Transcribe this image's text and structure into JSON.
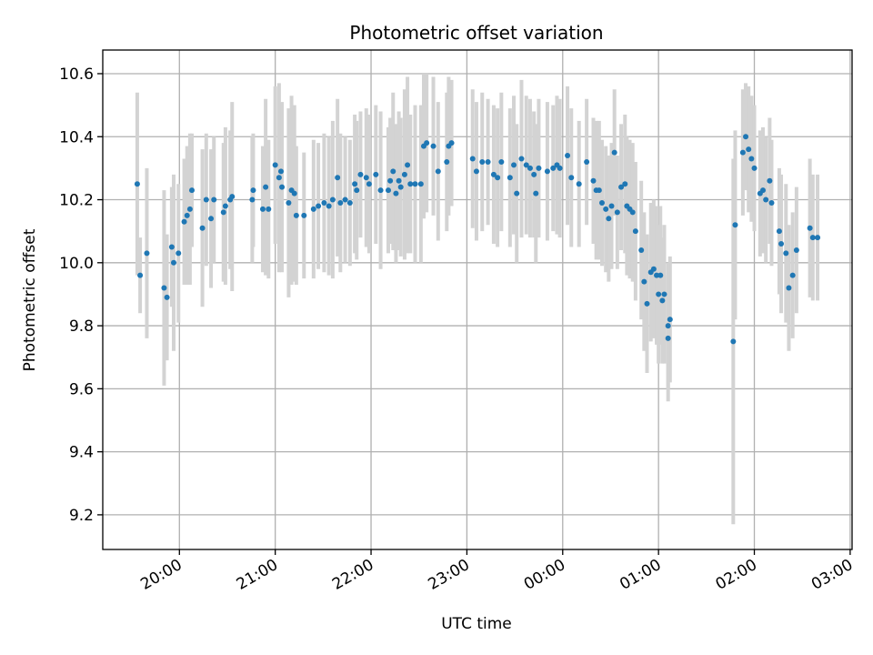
{
  "chart_data": {
    "type": "scatter",
    "title": "Photometric offset variation",
    "xlabel": "UTC time",
    "ylabel": "Photometric offset",
    "x_unit": "UTC time (hours; values past 24 are after 00:00 of the next day)",
    "xlim": [
      19.2,
      27.02
    ],
    "ylim": [
      9.09,
      10.675
    ],
    "x_ticks": [
      {
        "value": 20,
        "label": "20:00"
      },
      {
        "value": 21,
        "label": "21:00"
      },
      {
        "value": 22,
        "label": "22:00"
      },
      {
        "value": 23,
        "label": "23:00"
      },
      {
        "value": 24,
        "label": "00:00"
      },
      {
        "value": 25,
        "label": "01:00"
      },
      {
        "value": 26,
        "label": "02:00"
      },
      {
        "value": 27,
        "label": "03:00"
      }
    ],
    "y_ticks": [
      {
        "value": 9.2,
        "label": "9.2"
      },
      {
        "value": 9.4,
        "label": "9.4"
      },
      {
        "value": 9.6,
        "label": "9.6"
      },
      {
        "value": 9.8,
        "label": "9.8"
      },
      {
        "value": 10.0,
        "label": "10.0"
      },
      {
        "value": 10.2,
        "label": "10.2"
      },
      {
        "value": 10.4,
        "label": "10.4"
      },
      {
        "value": 10.6,
        "label": "10.6"
      }
    ],
    "grid": true,
    "point_color": "#1f77b4",
    "errorbar_color": "#d3d3d3",
    "series": [
      {
        "points": [
          [
            19.56,
            10.25,
            0.29
          ],
          [
            19.59,
            9.96,
            0.12
          ],
          [
            19.66,
            10.03,
            0.27
          ],
          [
            19.84,
            9.92,
            0.31
          ],
          [
            19.87,
            9.89,
            0.2
          ],
          [
            19.92,
            10.05,
            0.19
          ],
          [
            19.94,
            10.0,
            0.28
          ],
          [
            19.99,
            10.03,
            0.22
          ],
          [
            20.05,
            10.13,
            0.2
          ],
          [
            20.08,
            10.15,
            0.22
          ],
          [
            20.11,
            10.17,
            0.24
          ],
          [
            20.13,
            10.23,
            0.18
          ],
          [
            20.24,
            10.11,
            0.25
          ],
          [
            20.28,
            10.2,
            0.21
          ],
          [
            20.33,
            10.14,
            0.22
          ],
          [
            20.36,
            10.2,
            0.2
          ],
          [
            20.46,
            10.16,
            0.22
          ],
          [
            20.48,
            10.18,
            0.25
          ],
          [
            20.53,
            10.2,
            0.22
          ],
          [
            20.55,
            10.21,
            0.3
          ],
          [
            20.76,
            10.2,
            0.2
          ],
          [
            20.77,
            10.23,
            0.18
          ],
          [
            20.87,
            10.17,
            0.2
          ],
          [
            20.9,
            10.24,
            0.28
          ],
          [
            20.93,
            10.17,
            0.22
          ],
          [
            21.0,
            10.31,
            0.25
          ],
          [
            21.04,
            10.27,
            0.3
          ],
          [
            21.06,
            10.29,
            0.2
          ],
          [
            21.07,
            10.24,
            0.27
          ],
          [
            21.14,
            10.19,
            0.3
          ],
          [
            21.17,
            10.23,
            0.3
          ],
          [
            21.2,
            10.22,
            0.28
          ],
          [
            21.22,
            10.15,
            0.22
          ],
          [
            21.3,
            10.15,
            0.2
          ],
          [
            21.4,
            10.17,
            0.22
          ],
          [
            21.45,
            10.18,
            0.2
          ],
          [
            21.51,
            10.19,
            0.22
          ],
          [
            21.56,
            10.18,
            0.22
          ],
          [
            21.6,
            10.2,
            0.25
          ],
          [
            21.65,
            10.27,
            0.25
          ],
          [
            21.68,
            10.19,
            0.22
          ],
          [
            21.73,
            10.2,
            0.2
          ],
          [
            21.78,
            10.19,
            0.2
          ],
          [
            21.83,
            10.25,
            0.22
          ],
          [
            21.85,
            10.23,
            0.22
          ],
          [
            21.89,
            10.28,
            0.2
          ],
          [
            21.95,
            10.27,
            0.22
          ],
          [
            21.98,
            10.25,
            0.22
          ],
          [
            22.05,
            10.28,
            0.22
          ],
          [
            22.1,
            10.23,
            0.25
          ],
          [
            22.18,
            10.23,
            0.2
          ],
          [
            22.2,
            10.26,
            0.2
          ],
          [
            22.23,
            10.29,
            0.25
          ],
          [
            22.26,
            10.22,
            0.22
          ],
          [
            22.29,
            10.26,
            0.22
          ],
          [
            22.31,
            10.24,
            0.22
          ],
          [
            22.35,
            10.28,
            0.27
          ],
          [
            22.38,
            10.31,
            0.28
          ],
          [
            22.41,
            10.25,
            0.22
          ],
          [
            22.46,
            10.25,
            0.25
          ],
          [
            22.52,
            10.25,
            0.25
          ],
          [
            22.55,
            10.37,
            0.23
          ],
          [
            22.58,
            10.38,
            0.22
          ],
          [
            22.65,
            10.37,
            0.22
          ],
          [
            22.7,
            10.29,
            0.22
          ],
          [
            22.79,
            10.32,
            0.22
          ],
          [
            22.81,
            10.37,
            0.22
          ],
          [
            22.84,
            10.38,
            0.2
          ],
          [
            23.06,
            10.33,
            0.22
          ],
          [
            23.1,
            10.29,
            0.22
          ],
          [
            23.16,
            10.32,
            0.22
          ],
          [
            23.22,
            10.32,
            0.2
          ],
          [
            23.28,
            10.28,
            0.22
          ],
          [
            23.32,
            10.27,
            0.22
          ],
          [
            23.36,
            10.32,
            0.22
          ],
          [
            23.45,
            10.27,
            0.22
          ],
          [
            23.49,
            10.31,
            0.22
          ],
          [
            23.52,
            10.22,
            0.22
          ],
          [
            23.57,
            10.33,
            0.25
          ],
          [
            23.62,
            10.31,
            0.22
          ],
          [
            23.66,
            10.3,
            0.22
          ],
          [
            23.7,
            10.28,
            0.2
          ],
          [
            23.72,
            10.22,
            0.22
          ],
          [
            23.75,
            10.3,
            0.22
          ],
          [
            23.84,
            10.29,
            0.22
          ],
          [
            23.9,
            10.3,
            0.2
          ],
          [
            23.94,
            10.31,
            0.22
          ],
          [
            23.97,
            10.3,
            0.22
          ],
          [
            24.05,
            10.34,
            0.22
          ],
          [
            24.09,
            10.27,
            0.22
          ],
          [
            24.17,
            10.25,
            0.2
          ],
          [
            24.25,
            10.32,
            0.2
          ],
          [
            24.32,
            10.26,
            0.2
          ],
          [
            24.35,
            10.23,
            0.22
          ],
          [
            24.38,
            10.23,
            0.22
          ],
          [
            24.41,
            10.19,
            0.2
          ],
          [
            24.45,
            10.17,
            0.2
          ],
          [
            24.48,
            10.14,
            0.2
          ],
          [
            24.51,
            10.18,
            0.2
          ],
          [
            24.54,
            10.35,
            0.2
          ],
          [
            24.57,
            10.16,
            0.18
          ],
          [
            24.61,
            10.24,
            0.2
          ],
          [
            24.65,
            10.25,
            0.22
          ],
          [
            24.67,
            10.18,
            0.22
          ],
          [
            24.7,
            10.17,
            0.22
          ],
          [
            24.73,
            10.16,
            0.22
          ],
          [
            24.76,
            10.1,
            0.22
          ],
          [
            24.82,
            10.04,
            0.22
          ],
          [
            24.85,
            9.94,
            0.22
          ],
          [
            24.88,
            9.87,
            0.22
          ],
          [
            24.92,
            9.97,
            0.22
          ],
          [
            24.95,
            9.98,
            0.22
          ],
          [
            24.98,
            9.96,
            0.22
          ],
          [
            25.0,
            9.9,
            0.22
          ],
          [
            25.02,
            9.96,
            0.22
          ],
          [
            25.04,
            9.88,
            0.2
          ],
          [
            25.06,
            9.9,
            0.22
          ],
          [
            25.1,
            9.76,
            0.2
          ],
          [
            25.12,
            9.82,
            0.2
          ],
          [
            25.1,
            9.8,
            0.2
          ],
          [
            25.78,
            9.75,
            0.58
          ],
          [
            25.8,
            10.12,
            0.3
          ],
          [
            25.88,
            10.35,
            0.2
          ],
          [
            25.91,
            10.4,
            0.17
          ],
          [
            25.94,
            10.36,
            0.2
          ],
          [
            25.97,
            10.33,
            0.2
          ],
          [
            26.0,
            10.3,
            0.2
          ],
          [
            26.06,
            10.22,
            0.2
          ],
          [
            26.09,
            10.23,
            0.2
          ],
          [
            26.12,
            10.2,
            0.2
          ],
          [
            26.16,
            10.26,
            0.2
          ],
          [
            26.18,
            10.19,
            0.2
          ],
          [
            26.26,
            10.1,
            0.2
          ],
          [
            26.28,
            10.06,
            0.22
          ],
          [
            26.33,
            10.03,
            0.22
          ],
          [
            26.36,
            9.92,
            0.2
          ],
          [
            26.4,
            9.96,
            0.2
          ],
          [
            26.44,
            10.04,
            0.2
          ],
          [
            26.58,
            10.11,
            0.22
          ],
          [
            26.61,
            10.08,
            0.2
          ],
          [
            26.66,
            10.08,
            0.2
          ]
        ]
      }
    ]
  }
}
